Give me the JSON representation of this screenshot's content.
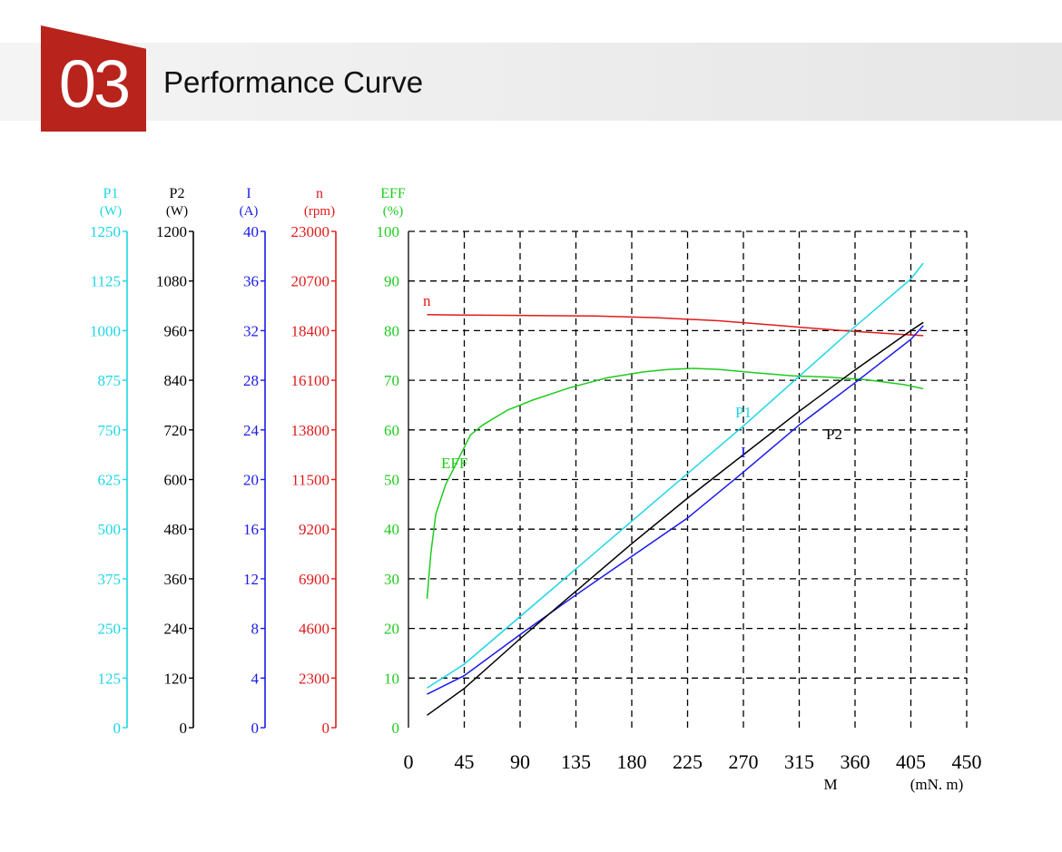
{
  "header": {
    "number": "03",
    "title": "Performance Curve"
  },
  "colors": {
    "badge": "#b8231c",
    "P1": "#1ed6e6",
    "P2": "#000000",
    "I": "#1a1aeb",
    "n": "#e01b1b",
    "EFF": "#1ecb1e"
  },
  "chart_data": {
    "type": "line",
    "grid": "dashed",
    "x_axis": {
      "label": "M",
      "unit": "(mN. m)",
      "range": [
        0,
        450
      ],
      "ticks": [
        "0",
        "45",
        "90",
        "135",
        "180",
        "225",
        "270",
        "315",
        "360",
        "405",
        "450"
      ]
    },
    "y_axes": [
      {
        "key": "P1",
        "label": "P1",
        "unit": "(W)",
        "range": [
          0,
          1250
        ],
        "ticks": [
          "0",
          "125",
          "250",
          "375",
          "500",
          "625",
          "750",
          "875",
          "1000",
          "1125",
          "1250"
        ]
      },
      {
        "key": "P2",
        "label": "P2",
        "unit": "(W)",
        "range": [
          0,
          1200
        ],
        "ticks": [
          "0",
          "120",
          "240",
          "360",
          "480",
          "600",
          "720",
          "840",
          "960",
          "1080",
          "1200"
        ]
      },
      {
        "key": "I",
        "label": "I",
        "unit": "(A)",
        "range": [
          0,
          40
        ],
        "ticks": [
          "0",
          "4",
          "8",
          "12",
          "16",
          "20",
          "24",
          "28",
          "32",
          "36",
          "40"
        ]
      },
      {
        "key": "n",
        "label": "n",
        "unit": "(rpm)",
        "range": [
          0,
          23000
        ],
        "ticks": [
          "0",
          "2300",
          "4600",
          "6900",
          "9200",
          "11500",
          "13800",
          "16100",
          "18400",
          "20700",
          "23000"
        ]
      },
      {
        "key": "EFF",
        "label": "EFF",
        "unit": "(%)",
        "range": [
          0,
          100
        ],
        "ticks": [
          "0",
          "10",
          "20",
          "30",
          "40",
          "50",
          "60",
          "70",
          "80",
          "90",
          "100"
        ]
      }
    ],
    "series": [
      {
        "name": "n",
        "axis": "n",
        "x": [
          15,
          50,
          100,
          150,
          200,
          250,
          300,
          350,
          400,
          415
        ],
        "y": [
          19140,
          19120,
          19100,
          19080,
          19000,
          18860,
          18630,
          18400,
          18220,
          18170
        ]
      },
      {
        "name": "EFF",
        "axis": "EFF",
        "x": [
          15,
          18,
          22,
          30,
          40,
          50,
          60,
          80,
          100,
          130,
          160,
          190,
          210,
          230,
          250,
          280,
          310,
          340,
          370,
          400,
          415
        ],
        "y": [
          26,
          35,
          43,
          49,
          54,
          59,
          61,
          64,
          66,
          68.5,
          70.5,
          71.7,
          72.2,
          72.4,
          72.2,
          71.5,
          70.9,
          70.6,
          70.1,
          69.1,
          68.3
        ]
      },
      {
        "name": "P1",
        "axis": "P1",
        "x": [
          15,
          45,
          90,
          135,
          180,
          225,
          270,
          315,
          360,
          405,
          415
        ],
        "y": [
          100,
          160,
          280,
          400,
          520,
          640,
          760,
          885,
          1010,
          1130,
          1170
        ]
      },
      {
        "name": "I",
        "axis": "I",
        "x": [
          15,
          45,
          90,
          135,
          180,
          225,
          270,
          315,
          360,
          405,
          415
        ],
        "y": [
          2.7,
          4.2,
          7.5,
          10.7,
          13.8,
          16.9,
          20.6,
          24.4,
          27.8,
          31.3,
          32.4
        ]
      },
      {
        "name": "P2",
        "axis": "P2",
        "x": [
          15,
          45,
          90,
          135,
          180,
          225,
          270,
          315,
          360,
          405,
          415
        ],
        "y": [
          30,
          95,
          215,
          330,
          445,
          555,
          660,
          765,
          865,
          960,
          980
        ]
      }
    ],
    "curve_labels": [
      {
        "text": "n",
        "series": "n"
      },
      {
        "text": "EFF",
        "series": "EFF"
      },
      {
        "text": "P1",
        "series": "P1"
      },
      {
        "text": "I",
        "series": "I"
      },
      {
        "text": "P2",
        "series": "P2"
      }
    ]
  }
}
